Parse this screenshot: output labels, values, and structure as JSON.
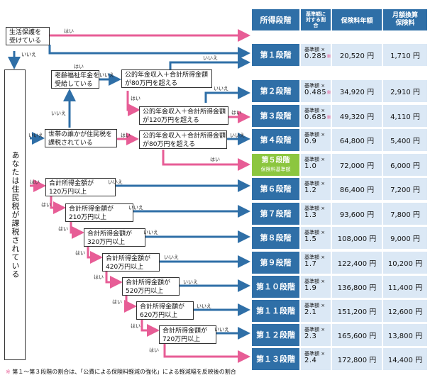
{
  "header": {
    "col_stage": "所得段階",
    "col_ratio": "基準額に対する割合",
    "col_annual": "保険料年額",
    "col_monthly": "月額換算保険料"
  },
  "nodes": {
    "welfare": "生活保護を\n受けている",
    "taxed_vertical": "あなたは住民税が課税されている",
    "elderly_pension": "老齢福祉年金を\n受給している",
    "household_taxed": "世帯の誰かが住民税を\n課税されている",
    "pension_80_a": "公的年金収入＋合計所得金額\nが80万円を超える",
    "pension_120": "公的年金収入＋合計所得金額\nが120万円を超える",
    "pension_80_b": "公的年金収入＋合計所得金額\nが80万円を超える",
    "inc_120": "合計所得金額が\n120万円以上",
    "inc_210": "合計所得金額が\n210万円以上",
    "inc_320": "合計所得金額が\n320万円以上",
    "inc_420": "合計所得金額が\n420万円以上",
    "inc_520": "合計所得金額が\n520万円以上",
    "inc_620": "合計所得金額が\n620万円以上",
    "inc_720": "合計所得金額が\n720万円以上"
  },
  "labels": {
    "yes": "はい",
    "no": "いいえ"
  },
  "rows": [
    {
      "stage": "第１段階",
      "ratio_prefix": "基準額 ×",
      "ratio": "0.285",
      "note": "※",
      "annual": "20,520 円",
      "monthly": "1,710 円"
    },
    {
      "stage": "第２段階",
      "ratio_prefix": "基準額 ×",
      "ratio": "0.485",
      "note": "※",
      "annual": "34,920 円",
      "monthly": "2,910 円"
    },
    {
      "stage": "第３段階",
      "ratio_prefix": "基準額 ×",
      "ratio": "0.685",
      "note": "※",
      "annual": "49,320 円",
      "monthly": "4,110 円"
    },
    {
      "stage": "第４段階",
      "ratio_prefix": "基準額 ×",
      "ratio": "0.9",
      "note": "",
      "annual": "64,800 円",
      "monthly": "5,400 円"
    },
    {
      "stage": "第５段階",
      "sub": "保険料基準額",
      "ratio_prefix": "基準額 ×",
      "ratio": "1.0",
      "note": "",
      "annual": "72,000 円",
      "monthly": "6,000 円"
    },
    {
      "stage": "第６段階",
      "ratio_prefix": "基準額 ×",
      "ratio": "1.2",
      "note": "",
      "annual": "86,400 円",
      "monthly": "7,200 円"
    },
    {
      "stage": "第７段階",
      "ratio_prefix": "基準額 ×",
      "ratio": "1.3",
      "note": "",
      "annual": "93,600 円",
      "monthly": "7,800 円"
    },
    {
      "stage": "第８段階",
      "ratio_prefix": "基準額 ×",
      "ratio": "1.5",
      "note": "",
      "annual": "108,000 円",
      "monthly": "9,000 円"
    },
    {
      "stage": "第９段階",
      "ratio_prefix": "基準額 ×",
      "ratio": "1.7",
      "note": "",
      "annual": "122,400 円",
      "monthly": "10,200 円"
    },
    {
      "stage": "第１０段階",
      "ratio_prefix": "基準額 ×",
      "ratio": "1.9",
      "note": "",
      "annual": "136,800 円",
      "monthly": "11,400 円"
    },
    {
      "stage": "第１１段階",
      "ratio_prefix": "基準額 ×",
      "ratio": "2.1",
      "note": "",
      "annual": "151,200 円",
      "monthly": "12,600 円"
    },
    {
      "stage": "第１２段階",
      "ratio_prefix": "基準額 ×",
      "ratio": "2.3",
      "note": "",
      "annual": "165,600 円",
      "monthly": "13,800 円"
    },
    {
      "stage": "第１３段階",
      "ratio_prefix": "基準額 ×",
      "ratio": "2.4",
      "note": "",
      "annual": "172,800 円",
      "monthly": "14,400 円"
    }
  ],
  "footnote": {
    "mark": "※",
    "text": "第１～第３段階の割合は、「公費による保険料軽減の強化」による軽減幅を反映後の割合"
  },
  "colors": {
    "header_blue": "#2f6fa7",
    "stage5_green": "#8cc63f",
    "yes_pink": "#e75d96",
    "no_blue": "#2f6fa7",
    "cell_bg": "#dbe8f5"
  }
}
